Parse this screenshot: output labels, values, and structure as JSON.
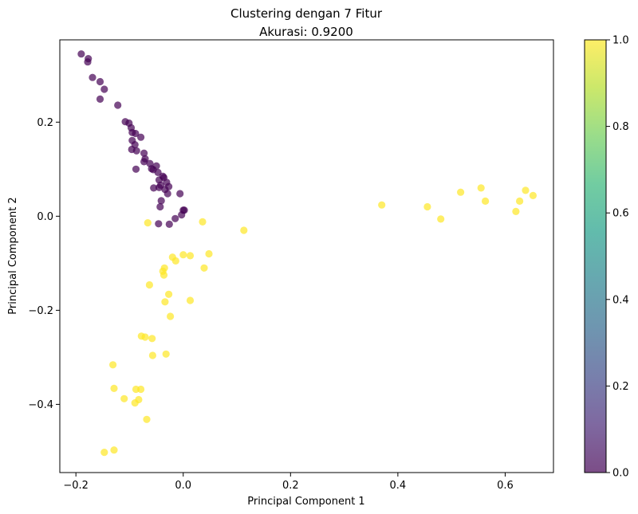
{
  "chart_data": {
    "type": "scatter",
    "title": "Clustering dengan 7 Fitur",
    "subtitle": "Akurasi: 0.9200",
    "xlabel": "Principal Component 1",
    "ylabel": "Principal Component 2",
    "xlim": [
      -0.23,
      0.69
    ],
    "ylim": [
      -0.545,
      0.375
    ],
    "xticks": [
      -0.2,
      0.0,
      0.2,
      0.4,
      0.6
    ],
    "xtick_labels": [
      "−0.2",
      "0.0",
      "0.2",
      "0.4",
      "0.6"
    ],
    "yticks": [
      -0.4,
      -0.2,
      0.0,
      0.2
    ],
    "ytick_labels": [
      "−0.4",
      "−0.2",
      "0.0",
      "0.2"
    ],
    "grid": false,
    "colormap": "viridis",
    "colorbar": {
      "range": [
        0.0,
        1.0
      ],
      "ticks": [
        0.0,
        0.2,
        0.4,
        0.6,
        0.8,
        1.0
      ],
      "tick_labels": [
        "0.0",
        "0.2",
        "0.4",
        "0.6",
        "0.8",
        "1.0"
      ],
      "stops": [
        "#440154",
        "#482878",
        "#3e4989",
        "#31688e",
        "#26828e",
        "#1f9e89",
        "#35b779",
        "#6ece58",
        "#b5de2b",
        "#fde725"
      ]
    },
    "point_alpha": 0.7,
    "series": [
      {
        "value": 0.0,
        "color": "#440154",
        "points": [
          [
            -0.19,
            0.345
          ],
          [
            -0.177,
            0.335
          ],
          [
            -0.178,
            0.328
          ],
          [
            -0.169,
            0.295
          ],
          [
            -0.155,
            0.286
          ],
          [
            -0.147,
            0.27
          ],
          [
            -0.155,
            0.249
          ],
          [
            -0.122,
            0.236
          ],
          [
            -0.108,
            0.201
          ],
          [
            -0.101,
            0.198
          ],
          [
            -0.097,
            0.188
          ],
          [
            -0.095,
            0.178
          ],
          [
            -0.089,
            0.176
          ],
          [
            -0.079,
            0.168
          ],
          [
            -0.095,
            0.161
          ],
          [
            -0.09,
            0.152
          ],
          [
            -0.096,
            0.142
          ],
          [
            -0.087,
            0.139
          ],
          [
            -0.073,
            0.134
          ],
          [
            -0.071,
            0.122
          ],
          [
            -0.073,
            0.116
          ],
          [
            -0.062,
            0.112
          ],
          [
            -0.059,
            0.101
          ],
          [
            -0.056,
            0.099
          ],
          [
            -0.05,
            0.107
          ],
          [
            -0.047,
            0.093
          ],
          [
            -0.088,
            0.1
          ],
          [
            -0.038,
            0.085
          ],
          [
            -0.045,
            0.077
          ],
          [
            -0.036,
            0.082
          ],
          [
            -0.031,
            0.072
          ],
          [
            -0.042,
            0.066
          ],
          [
            -0.027,
            0.063
          ],
          [
            -0.034,
            0.057
          ],
          [
            -0.045,
            0.061
          ],
          [
            -0.055,
            0.06
          ],
          [
            -0.029,
            0.048
          ],
          [
            -0.006,
            0.048
          ],
          [
            -0.041,
            0.033
          ],
          [
            -0.043,
            0.02
          ],
          [
            0.0,
            0.013
          ],
          [
            0.002,
            0.013
          ],
          [
            -0.003,
            0.003
          ],
          [
            -0.015,
            -0.005
          ],
          [
            -0.026,
            -0.017
          ],
          [
            -0.046,
            -0.016
          ]
        ]
      },
      {
        "value": 1.0,
        "color": "#fde725",
        "points": [
          [
            -0.066,
            -0.014
          ],
          [
            0.036,
            -0.012
          ],
          [
            0.113,
            -0.03
          ],
          [
            0.048,
            -0.08
          ],
          [
            0.0,
            -0.082
          ],
          [
            0.013,
            -0.084
          ],
          [
            -0.02,
            -0.087
          ],
          [
            -0.014,
            -0.095
          ],
          [
            0.039,
            -0.11
          ],
          [
            -0.035,
            -0.11
          ],
          [
            -0.038,
            -0.117
          ],
          [
            -0.036,
            -0.125
          ],
          [
            -0.063,
            -0.146
          ],
          [
            -0.027,
            -0.166
          ],
          [
            -0.034,
            -0.182
          ],
          [
            0.013,
            -0.179
          ],
          [
            -0.024,
            -0.213
          ],
          [
            -0.078,
            -0.255
          ],
          [
            -0.071,
            -0.257
          ],
          [
            -0.058,
            -0.26
          ],
          [
            -0.032,
            -0.293
          ],
          [
            -0.057,
            -0.296
          ],
          [
            -0.131,
            -0.316
          ],
          [
            -0.129,
            -0.366
          ],
          [
            -0.088,
            -0.368
          ],
          [
            -0.079,
            -0.368
          ],
          [
            -0.11,
            -0.388
          ],
          [
            -0.083,
            -0.39
          ],
          [
            -0.09,
            -0.397
          ],
          [
            -0.068,
            -0.432
          ],
          [
            -0.147,
            -0.502
          ],
          [
            -0.129,
            -0.497
          ],
          [
            0.37,
            0.024
          ],
          [
            0.455,
            0.02
          ],
          [
            0.48,
            -0.006
          ],
          [
            0.517,
            0.051
          ],
          [
            0.555,
            0.06
          ],
          [
            0.563,
            0.032
          ],
          [
            0.638,
            0.055
          ],
          [
            0.652,
            0.044
          ],
          [
            0.627,
            0.032
          ],
          [
            0.62,
            0.01
          ]
        ]
      }
    ]
  }
}
